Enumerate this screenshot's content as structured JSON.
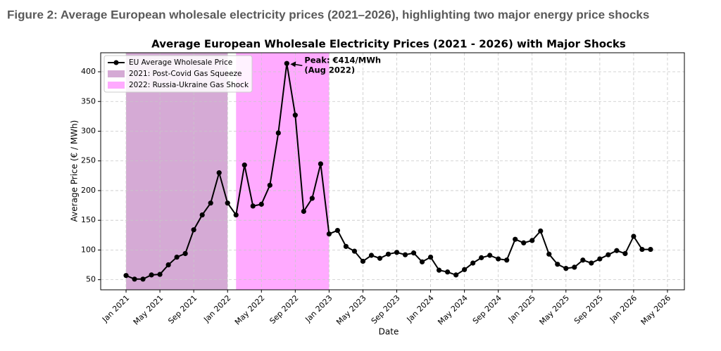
{
  "caption": "Figure 2: Average European wholesale electricity prices (2021–2026), highlighting two major energy price shocks",
  "chart_data": {
    "type": "line",
    "title": "Average European Wholesale Electricity Prices (2021 - 2026) with Major Shocks",
    "xlabel": "Date",
    "ylabel": "Average Price (€ / MWh)",
    "x": [
      "2021-01",
      "2021-02",
      "2021-03",
      "2021-04",
      "2021-05",
      "2021-06",
      "2021-07",
      "2021-08",
      "2021-09",
      "2021-10",
      "2021-11",
      "2021-12",
      "2022-01",
      "2022-02",
      "2022-03",
      "2022-04",
      "2022-05",
      "2022-06",
      "2022-07",
      "2022-08",
      "2022-09",
      "2022-10",
      "2022-11",
      "2022-12",
      "2023-01",
      "2023-02",
      "2023-03",
      "2023-04",
      "2023-05",
      "2023-06",
      "2023-07",
      "2023-08",
      "2023-09",
      "2023-10",
      "2023-11",
      "2023-12",
      "2024-01",
      "2024-02",
      "2024-03",
      "2024-04",
      "2024-05",
      "2024-06",
      "2024-07",
      "2024-08",
      "2024-09",
      "2024-10",
      "2024-11",
      "2024-12",
      "2025-01",
      "2025-02",
      "2025-03",
      "2025-04",
      "2025-05",
      "2025-06",
      "2025-07",
      "2025-08",
      "2025-09",
      "2025-10",
      "2025-11",
      "2025-12",
      "2026-01",
      "2026-02",
      "2026-03"
    ],
    "series": [
      {
        "name": "EU Average Wholesale Price",
        "color": "#000000",
        "values": [
          57,
          51,
          51,
          58,
          59,
          75,
          88,
          94,
          134,
          159,
          179,
          230,
          179,
          159,
          243,
          174,
          177,
          209,
          297,
          414,
          327,
          165,
          187,
          245,
          127,
          133,
          106,
          98,
          81,
          91,
          86,
          93,
          96,
          92,
          95,
          80,
          88,
          66,
          63,
          58,
          67,
          78,
          87,
          91,
          85,
          83,
          118,
          112,
          116,
          132,
          93,
          76,
          69,
          71,
          83,
          78,
          85,
          92,
          99,
          94,
          123,
          101,
          101
        ]
      }
    ],
    "spans": [
      {
        "name": "2021: Post-Covid Gas Squeeze",
        "start": "2021-01",
        "end": "2022-01",
        "color": "#d5aad5"
      },
      {
        "name": "2022: Russia-Ukraine Gas Shock",
        "start": "2022-02",
        "end": "2023-01",
        "color": "#ffaaff"
      }
    ],
    "annotation": {
      "lines": [
        "Peak: €414/MWh",
        "(Aug 2022)"
      ],
      "xy": [
        "2022-08",
        414
      ]
    },
    "xlim": [
      "2020-10",
      "2026-07"
    ],
    "xticks": [
      {
        "value": "2021-01",
        "label": "Jan 2021"
      },
      {
        "value": "2021-05",
        "label": "May 2021"
      },
      {
        "value": "2021-09",
        "label": "Sep 2021"
      },
      {
        "value": "2022-01",
        "label": "Jan 2022"
      },
      {
        "value": "2022-05",
        "label": "May 2022"
      },
      {
        "value": "2022-09",
        "label": "Sep 2022"
      },
      {
        "value": "2023-01",
        "label": "Jan 2023"
      },
      {
        "value": "2023-05",
        "label": "May 2023"
      },
      {
        "value": "2023-09",
        "label": "Sep 2023"
      },
      {
        "value": "2024-01",
        "label": "Jan 2024"
      },
      {
        "value": "2024-05",
        "label": "May 2024"
      },
      {
        "value": "2024-09",
        "label": "Sep 2024"
      },
      {
        "value": "2025-01",
        "label": "Jan 2025"
      },
      {
        "value": "2025-05",
        "label": "May 2025"
      },
      {
        "value": "2025-09",
        "label": "Sep 2025"
      },
      {
        "value": "2026-01",
        "label": "Jan 2026"
      },
      {
        "value": "2026-05",
        "label": "May 2026"
      }
    ],
    "ylim": [
      33,
      432
    ],
    "yticks": [
      50,
      100,
      150,
      200,
      250,
      300,
      350,
      400
    ],
    "grid": true,
    "legend": "upper left"
  }
}
